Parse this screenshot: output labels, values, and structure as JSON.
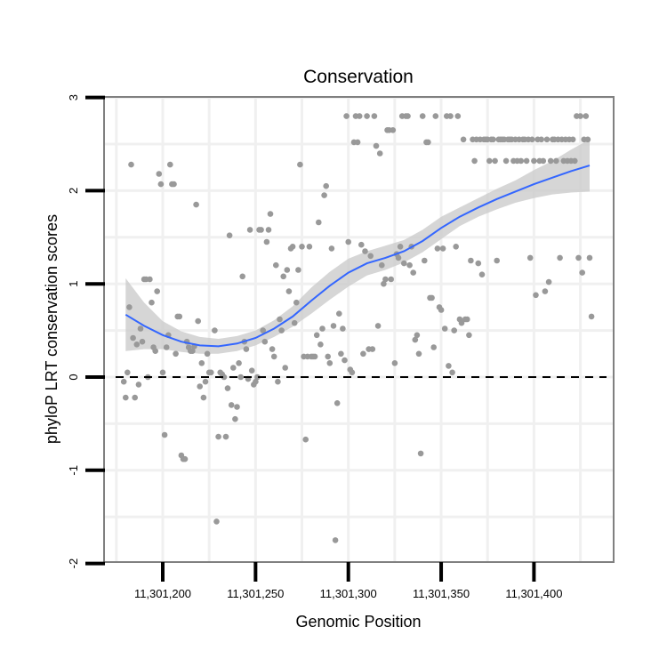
{
  "chart_data": {
    "type": "scatter",
    "title": "Conservation",
    "xlabel": "Genomic Position",
    "ylabel": "phyloP LRT conservation scores",
    "xlim": [
      11301170,
      11301445
    ],
    "ylim": [
      -2,
      3
    ],
    "xticks": [
      11301200,
      11301250,
      11301300,
      11301350,
      11301400
    ],
    "xtick_labels": [
      "11,301,200",
      "11,301,250",
      "11,301,300",
      "11,301,350",
      "11,301,400"
    ],
    "yticks": [
      -2,
      -1,
      0,
      1,
      2,
      3
    ],
    "ytick_labels": [
      "-2",
      "-1",
      "0",
      "1",
      "2",
      "3"
    ],
    "reference_line": {
      "y": 0,
      "style": "dashed"
    },
    "colors": {
      "points": "#999999",
      "smooth_line": "#3366ff",
      "ribbon": "#cccccc"
    },
    "points": [
      [
        11301179,
        -0.05
      ],
      [
        11301180,
        -0.22
      ],
      [
        11301181,
        0.05
      ],
      [
        11301182,
        0.75
      ],
      [
        11301183,
        2.28
      ],
      [
        11301184,
        0.42
      ],
      [
        11301185,
        -0.22
      ],
      [
        11301186,
        0.35
      ],
      [
        11301187,
        -0.08
      ],
      [
        11301188,
        0.52
      ],
      [
        11301189,
        0.38
      ],
      [
        11301190,
        1.05
      ],
      [
        11301191,
        1.05
      ],
      [
        11301192,
        0.0
      ],
      [
        11301193,
        1.05
      ],
      [
        11301194,
        0.8
      ],
      [
        11301195,
        0.32
      ],
      [
        11301196,
        0.28
      ],
      [
        11301197,
        0.92
      ],
      [
        11301198,
        2.18
      ],
      [
        11301199,
        2.07
      ],
      [
        11301200,
        0.05
      ],
      [
        11301201,
        -0.62
      ],
      [
        11301202,
        0.32
      ],
      [
        11301203,
        0.45
      ],
      [
        11301204,
        2.28
      ],
      [
        11301205,
        2.07
      ],
      [
        11301206,
        2.07
      ],
      [
        11301207,
        0.25
      ],
      [
        11301208,
        0.65
      ],
      [
        11301209,
        0.65
      ],
      [
        11301210,
        -0.84
      ],
      [
        11301211,
        -0.88
      ],
      [
        11301212,
        -0.88
      ],
      [
        11301213,
        0.38
      ],
      [
        11301214,
        0.32
      ],
      [
        11301215,
        0.28
      ],
      [
        11301216,
        0.28
      ],
      [
        11301217,
        0.33
      ],
      [
        11301218,
        1.85
      ],
      [
        11301219,
        0.6
      ],
      [
        11301220,
        -0.1
      ],
      [
        11301221,
        0.15
      ],
      [
        11301222,
        -0.22
      ],
      [
        11301223,
        -0.05
      ],
      [
        11301224,
        0.25
      ],
      [
        11301225,
        0.05
      ],
      [
        11301226,
        0.05
      ],
      [
        11301228,
        0.5
      ],
      [
        11301229,
        -1.55
      ],
      [
        11301230,
        -0.64
      ],
      [
        11301231,
        0.05
      ],
      [
        11301232,
        0.03
      ],
      [
        11301233,
        0.0
      ],
      [
        11301234,
        -0.64
      ],
      [
        11301235,
        -0.12
      ],
      [
        11301236,
        1.52
      ],
      [
        11301237,
        -0.3
      ],
      [
        11301238,
        0.1
      ],
      [
        11301239,
        -0.45
      ],
      [
        11301240,
        -0.32
      ],
      [
        11301241,
        0.15
      ],
      [
        11301242,
        0.0
      ],
      [
        11301243,
        1.08
      ],
      [
        11301244,
        0.38
      ],
      [
        11301245,
        0.3
      ],
      [
        11301246,
        -0.02
      ],
      [
        11301247,
        1.58
      ],
      [
        11301248,
        0.07
      ],
      [
        11301249,
        -0.08
      ],
      [
        11301250,
        -0.05
      ],
      [
        11301251,
        0.0
      ],
      [
        11301252,
        1.58
      ],
      [
        11301253,
        1.58
      ],
      [
        11301254,
        0.5
      ],
      [
        11301255,
        0.38
      ],
      [
        11301256,
        1.45
      ],
      [
        11301257,
        1.58
      ],
      [
        11301258,
        1.75
      ],
      [
        11301259,
        0.3
      ],
      [
        11301260,
        0.22
      ],
      [
        11301261,
        1.2
      ],
      [
        11301262,
        -0.05
      ],
      [
        11301263,
        0.62
      ],
      [
        11301264,
        0.5
      ],
      [
        11301265,
        1.08
      ],
      [
        11301266,
        0.1
      ],
      [
        11301267,
        1.15
      ],
      [
        11301268,
        0.92
      ],
      [
        11301269,
        1.38
      ],
      [
        11301270,
        1.4
      ],
      [
        11301271,
        0.58
      ],
      [
        11301272,
        0.8
      ],
      [
        11301273,
        1.15
      ],
      [
        11301274,
        2.28
      ],
      [
        11301275,
        1.4
      ],
      [
        11301276,
        0.22
      ],
      [
        11301277,
        -0.67
      ],
      [
        11301278,
        0.22
      ],
      [
        11301279,
        1.4
      ],
      [
        11301280,
        0.22
      ],
      [
        11301281,
        0.22
      ],
      [
        11301282,
        0.22
      ],
      [
        11301283,
        0.45
      ],
      [
        11301284,
        1.66
      ],
      [
        11301285,
        0.35
      ],
      [
        11301286,
        0.52
      ],
      [
        11301287,
        1.95
      ],
      [
        11301288,
        2.05
      ],
      [
        11301289,
        0.22
      ],
      [
        11301290,
        0.15
      ],
      [
        11301291,
        1.38
      ],
      [
        11301292,
        0.55
      ],
      [
        11301293,
        -1.75
      ],
      [
        11301294,
        -0.28
      ],
      [
        11301295,
        0.68
      ],
      [
        11301296,
        0.25
      ],
      [
        11301297,
        0.52
      ],
      [
        11301298,
        0.18
      ],
      [
        11301299,
        2.8
      ],
      [
        11301300,
        1.45
      ],
      [
        11301301,
        0.08
      ],
      [
        11301302,
        0.05
      ],
      [
        11301303,
        2.52
      ],
      [
        11301304,
        2.8
      ],
      [
        11301305,
        2.52
      ],
      [
        11301306,
        2.8
      ],
      [
        11301307,
        1.42
      ],
      [
        11301308,
        0.25
      ],
      [
        11301309,
        1.35
      ],
      [
        11301310,
        2.8
      ],
      [
        11301311,
        0.3
      ],
      [
        11301312,
        1.3
      ],
      [
        11301313,
        0.3
      ],
      [
        11301314,
        2.8
      ],
      [
        11301315,
        2.48
      ],
      [
        11301316,
        0.55
      ],
      [
        11301317,
        2.4
      ],
      [
        11301318,
        1.2
      ],
      [
        11301319,
        1.0
      ],
      [
        11301320,
        1.05
      ],
      [
        11301321,
        2.65
      ],
      [
        11301322,
        2.65
      ],
      [
        11301323,
        1.05
      ],
      [
        11301324,
        2.65
      ],
      [
        11301325,
        0.15
      ],
      [
        11301326,
        1.32
      ],
      [
        11301327,
        1.28
      ],
      [
        11301328,
        1.4
      ],
      [
        11301329,
        2.8
      ],
      [
        11301330,
        1.22
      ],
      [
        11301331,
        2.8
      ],
      [
        11301332,
        2.8
      ],
      [
        11301333,
        1.2
      ],
      [
        11301334,
        1.4
      ],
      [
        11301335,
        1.12
      ],
      [
        11301336,
        0.4
      ],
      [
        11301337,
        0.45
      ],
      [
        11301338,
        0.25
      ],
      [
        11301339,
        -0.82
      ],
      [
        11301340,
        2.8
      ],
      [
        11301341,
        1.25
      ],
      [
        11301342,
        2.52
      ],
      [
        11301343,
        2.52
      ],
      [
        11301344,
        0.85
      ],
      [
        11301345,
        0.85
      ],
      [
        11301346,
        0.32
      ],
      [
        11301347,
        2.8
      ],
      [
        11301348,
        1.38
      ],
      [
        11301349,
        0.75
      ],
      [
        11301350,
        0.72
      ],
      [
        11301351,
        1.38
      ],
      [
        11301352,
        0.52
      ],
      [
        11301353,
        2.8
      ],
      [
        11301354,
        0.12
      ],
      [
        11301355,
        2.8
      ],
      [
        11301356,
        0.05
      ],
      [
        11301357,
        0.5
      ],
      [
        11301358,
        1.4
      ],
      [
        11301359,
        2.8
      ],
      [
        11301360,
        0.62
      ],
      [
        11301361,
        0.58
      ],
      [
        11301362,
        2.55
      ],
      [
        11301363,
        0.62
      ],
      [
        11301364,
        0.62
      ],
      [
        11301365,
        0.45
      ],
      [
        11301366,
        1.25
      ],
      [
        11301367,
        2.55
      ],
      [
        11301368,
        2.32
      ],
      [
        11301369,
        2.55
      ],
      [
        11301370,
        1.22
      ],
      [
        11301371,
        2.55
      ],
      [
        11301372,
        1.1
      ],
      [
        11301373,
        2.55
      ],
      [
        11301374,
        2.55
      ],
      [
        11301375,
        2.55
      ],
      [
        11301376,
        2.32
      ],
      [
        11301377,
        2.55
      ],
      [
        11301378,
        2.55
      ],
      [
        11301379,
        2.32
      ],
      [
        11301380,
        1.25
      ],
      [
        11301381,
        2.55
      ],
      [
        11301382,
        2.55
      ],
      [
        11301383,
        2.55
      ],
      [
        11301384,
        2.55
      ],
      [
        11301385,
        2.32
      ],
      [
        11301386,
        2.55
      ],
      [
        11301387,
        2.55
      ],
      [
        11301388,
        2.55
      ],
      [
        11301389,
        2.32
      ],
      [
        11301390,
        2.55
      ],
      [
        11301391,
        2.32
      ],
      [
        11301392,
        2.55
      ],
      [
        11301393,
        2.32
      ],
      [
        11301394,
        2.55
      ],
      [
        11301395,
        2.55
      ],
      [
        11301396,
        2.32
      ],
      [
        11301397,
        2.55
      ],
      [
        11301398,
        1.28
      ],
      [
        11301399,
        2.55
      ],
      [
        11301400,
        2.32
      ],
      [
        11301401,
        0.88
      ],
      [
        11301402,
        2.55
      ],
      [
        11301403,
        2.32
      ],
      [
        11301404,
        2.55
      ],
      [
        11301405,
        2.32
      ],
      [
        11301406,
        0.92
      ],
      [
        11301407,
        2.55
      ],
      [
        11301408,
        1.02
      ],
      [
        11301409,
        2.32
      ],
      [
        11301410,
        2.55
      ],
      [
        11301411,
        2.55
      ],
      [
        11301412,
        2.32
      ],
      [
        11301413,
        2.55
      ],
      [
        11301414,
        1.28
      ],
      [
        11301415,
        2.55
      ],
      [
        11301416,
        2.32
      ],
      [
        11301417,
        2.55
      ],
      [
        11301418,
        2.32
      ],
      [
        11301419,
        2.55
      ],
      [
        11301420,
        2.32
      ],
      [
        11301421,
        2.55
      ],
      [
        11301422,
        2.32
      ],
      [
        11301423,
        2.8
      ],
      [
        11301424,
        1.28
      ],
      [
        11301425,
        2.8
      ],
      [
        11301426,
        1.12
      ],
      [
        11301427,
        2.55
      ],
      [
        11301428,
        2.8
      ],
      [
        11301429,
        2.55
      ],
      [
        11301430,
        1.28
      ],
      [
        11301431,
        0.65
      ]
    ],
    "smooth": {
      "x": [
        11301180,
        11301190,
        11301200,
        11301210,
        11301220,
        11301230,
        11301240,
        11301250,
        11301260,
        11301270,
        11301280,
        11301290,
        11301300,
        11301310,
        11301320,
        11301330,
        11301340,
        11301350,
        11301360,
        11301370,
        11301380,
        11301390,
        11301400,
        11301410,
        11301420,
        11301430
      ],
      "y": [
        0.67,
        0.55,
        0.45,
        0.38,
        0.34,
        0.33,
        0.36,
        0.42,
        0.52,
        0.65,
        0.82,
        0.98,
        1.12,
        1.22,
        1.28,
        1.35,
        1.46,
        1.6,
        1.72,
        1.82,
        1.91,
        1.99,
        2.07,
        2.14,
        2.21,
        2.27
      ],
      "lower": [
        0.28,
        0.3,
        0.3,
        0.27,
        0.25,
        0.25,
        0.28,
        0.34,
        0.43,
        0.54,
        0.68,
        0.83,
        0.97,
        1.09,
        1.15,
        1.23,
        1.34,
        1.48,
        1.62,
        1.72,
        1.8,
        1.87,
        1.92,
        1.96,
        1.98,
        1.99
      ],
      "upper": [
        1.06,
        0.8,
        0.6,
        0.49,
        0.43,
        0.41,
        0.44,
        0.5,
        0.61,
        0.76,
        0.96,
        1.13,
        1.27,
        1.35,
        1.41,
        1.47,
        1.58,
        1.72,
        1.82,
        1.92,
        2.02,
        2.11,
        2.22,
        2.32,
        2.44,
        2.55
      ]
    }
  }
}
